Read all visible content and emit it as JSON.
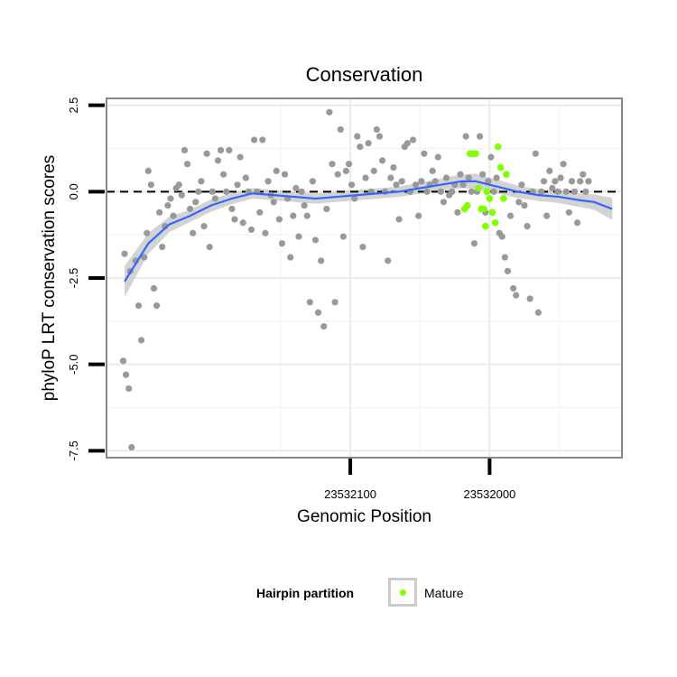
{
  "chart_data": {
    "type": "scatter",
    "title": "Conservation",
    "xlabel": "Genomic Position",
    "ylabel": "phyloP LRT conservation scores",
    "x_axis_reversed": true,
    "xlim": [
      23532275,
      23531905
    ],
    "ylim": [
      -7.7,
      2.7
    ],
    "x_ticks": [
      23532100,
      23532000
    ],
    "x_tick_labels": [
      "23532100",
      "23532000"
    ],
    "y_ticks": [
      -7.5,
      -5.0,
      -2.5,
      0.0,
      2.5
    ],
    "y_tick_labels": [
      "-7.5",
      "-5.0",
      "-2.5",
      "0.0",
      "2.5"
    ],
    "reference_line": {
      "y": 0,
      "style": "dashed"
    },
    "grid": true,
    "legend": {
      "title": "Hairpin partition",
      "position": "bottom",
      "entries": [
        "Mature"
      ]
    },
    "colors": {
      "background_points": "#999999",
      "mature_points": "#7fff00",
      "smooth_line": "#3366ff",
      "confidence_band": "#c8c8c8",
      "panel_border": "#888888"
    },
    "series": [
      {
        "role": "background",
        "points": [
          [
            23532263,
            -4.9
          ],
          [
            23532261,
            -5.3
          ],
          [
            23532259,
            -5.7
          ],
          [
            23532257,
            -7.4
          ],
          [
            23532262,
            -1.8
          ],
          [
            23532258,
            -2.3
          ],
          [
            23532254,
            -2.0
          ],
          [
            23532252,
            -3.3
          ],
          [
            23532250,
            -4.3
          ],
          [
            23532248,
            -1.9
          ],
          [
            23532246,
            -1.2
          ],
          [
            23532245,
            0.6
          ],
          [
            23532243,
            0.2
          ],
          [
            23532241,
            -2.8
          ],
          [
            23532239,
            -3.3
          ],
          [
            23532237,
            -0.6
          ],
          [
            23532235,
            -1.6
          ],
          [
            23532233,
            -1.0
          ],
          [
            23532231,
            -0.4
          ],
          [
            23532229,
            -0.2
          ],
          [
            23532227,
            -0.7
          ],
          [
            23532225,
            0.1
          ],
          [
            23532223,
            0.2
          ],
          [
            23532221,
            -0.1
          ],
          [
            23532219,
            1.2
          ],
          [
            23532217,
            0.8
          ],
          [
            23532215,
            -0.5
          ],
          [
            23532213,
            -1.2
          ],
          [
            23532211,
            -0.3
          ],
          [
            23532209,
            0.0
          ],
          [
            23532207,
            0.3
          ],
          [
            23532205,
            -1.0
          ],
          [
            23532203,
            1.1
          ],
          [
            23532201,
            -1.6
          ],
          [
            23532199,
            0.0
          ],
          [
            23532197,
            -0.2
          ],
          [
            23532195,
            0.9
          ],
          [
            23532193,
            1.2
          ],
          [
            23532191,
            0.5
          ],
          [
            23532189,
            0.0
          ],
          [
            23532187,
            1.2
          ],
          [
            23532185,
            -0.5
          ],
          [
            23532183,
            -0.8
          ],
          [
            23532181,
            0.2
          ],
          [
            23532179,
            1.0
          ],
          [
            23532177,
            -0.9
          ],
          [
            23532175,
            0.4
          ],
          [
            23532173,
            0.0
          ],
          [
            23532171,
            -1.1
          ],
          [
            23532169,
            1.5
          ],
          [
            23532167,
            0.0
          ],
          [
            23532165,
            -0.6
          ],
          [
            23532163,
            1.5
          ],
          [
            23532161,
            -1.2
          ],
          [
            23532159,
            0.3
          ],
          [
            23532157,
            -0.1
          ],
          [
            23532155,
            -0.3
          ],
          [
            23532153,
            0.6
          ],
          [
            23532151,
            -0.8
          ],
          [
            23532149,
            -1.5
          ],
          [
            23532147,
            0.5
          ],
          [
            23532145,
            -0.2
          ],
          [
            23532143,
            -1.9
          ],
          [
            23532141,
            -0.7
          ],
          [
            23532139,
            0.1
          ],
          [
            23532137,
            -1.3
          ],
          [
            23532135,
            0.0
          ],
          [
            23532133,
            -0.4
          ],
          [
            23532131,
            -0.7
          ],
          [
            23532129,
            -3.2
          ],
          [
            23532127,
            0.3
          ],
          [
            23532125,
            -1.4
          ],
          [
            23532123,
            -3.5
          ],
          [
            23532121,
            -2.0
          ],
          [
            23532119,
            -3.9
          ],
          [
            23532117,
            -0.5
          ],
          [
            23532115,
            2.3
          ],
          [
            23532113,
            0.8
          ],
          [
            23532111,
            -3.2
          ],
          [
            23532109,
            0.5
          ],
          [
            23532107,
            1.8
          ],
          [
            23532105,
            -1.3
          ],
          [
            23532103,
            0.6
          ],
          [
            23532101,
            0.8
          ],
          [
            23532099,
            0.2
          ],
          [
            23532097,
            -0.2
          ],
          [
            23532095,
            1.6
          ],
          [
            23532093,
            1.3
          ],
          [
            23532091,
            -1.6
          ],
          [
            23532089,
            0.4
          ],
          [
            23532087,
            1.4
          ],
          [
            23532085,
            0.0
          ],
          [
            23532083,
            0.6
          ],
          [
            23532081,
            1.8
          ],
          [
            23532079,
            1.6
          ],
          [
            23532077,
            0.9
          ],
          [
            23532075,
            0.0
          ],
          [
            23532073,
            -2.0
          ],
          [
            23532071,
            0.4
          ],
          [
            23532069,
            0.7
          ],
          [
            23532067,
            0.2
          ],
          [
            23532065,
            -0.8
          ],
          [
            23532063,
            0.3
          ],
          [
            23532061,
            1.3
          ],
          [
            23532059,
            1.4
          ],
          [
            23532057,
            0.0
          ],
          [
            23532055,
            1.5
          ],
          [
            23532053,
            0.2
          ],
          [
            23532051,
            -0.7
          ],
          [
            23532049,
            0.3
          ],
          [
            23532047,
            1.1
          ],
          [
            23532045,
            0.0
          ],
          [
            23532043,
            0.2
          ],
          [
            23532041,
            0.6
          ],
          [
            23532039,
            0.3
          ],
          [
            23532037,
            1.0
          ],
          [
            23532035,
            0.0
          ],
          [
            23532033,
            -0.3
          ],
          [
            23532031,
            0.4
          ],
          [
            23532029,
            -0.1
          ],
          [
            23532027,
            0.0
          ],
          [
            23532025,
            0.2
          ],
          [
            23532023,
            -0.6
          ],
          [
            23532021,
            0.5
          ],
          [
            23532019,
            0.2
          ],
          [
            23532017,
            1.6
          ],
          [
            23532015,
            0.4
          ],
          [
            23532013,
            0.0
          ],
          [
            23532011,
            -1.5
          ],
          [
            23532009,
            0.0
          ],
          [
            23532007,
            1.6
          ],
          [
            23532005,
            0.5
          ],
          [
            23532003,
            -0.6
          ],
          [
            23532001,
            0.3
          ],
          [
            23531999,
            1.0
          ],
          [
            23531997,
            0.0
          ],
          [
            23531995,
            0.4
          ],
          [
            23531993,
            -1.2
          ],
          [
            23531991,
            -1.3
          ],
          [
            23531989,
            -1.9
          ],
          [
            23531987,
            -2.3
          ],
          [
            23531985,
            -0.7
          ],
          [
            23531983,
            -2.8
          ],
          [
            23531981,
            -3.0
          ],
          [
            23531979,
            -0.3
          ],
          [
            23531977,
            0.2
          ],
          [
            23531975,
            -0.4
          ],
          [
            23531973,
            -1.0
          ],
          [
            23531971,
            -3.1
          ],
          [
            23531969,
            0.0
          ],
          [
            23531967,
            1.1
          ],
          [
            23531965,
            -3.5
          ],
          [
            23531963,
            0.0
          ],
          [
            23531961,
            0.3
          ],
          [
            23531959,
            -0.7
          ],
          [
            23531957,
            0.6
          ],
          [
            23531955,
            0.1
          ],
          [
            23531953,
            0.3
          ],
          [
            23531951,
            0.0
          ],
          [
            23531949,
            0.4
          ],
          [
            23531947,
            0.8
          ],
          [
            23531945,
            0.0
          ],
          [
            23531943,
            -0.6
          ],
          [
            23531941,
            0.3
          ],
          [
            23531939,
            0.0
          ],
          [
            23531937,
            -0.9
          ],
          [
            23531935,
            0.3
          ],
          [
            23531933,
            0.5
          ],
          [
            23531931,
            0.0
          ],
          [
            23531929,
            0.3
          ]
        ]
      },
      {
        "role": "highlight",
        "name": "Mature",
        "points": [
          [
            23532014,
            1.1
          ],
          [
            23532012,
            1.1
          ],
          [
            23532010,
            1.1
          ],
          [
            23532008,
            0.1
          ],
          [
            23532006,
            -0.5
          ],
          [
            23532004,
            -0.5
          ],
          [
            23532002,
            0.0
          ],
          [
            23532000,
            -0.2
          ],
          [
            23531998,
            -0.6
          ],
          [
            23531996,
            -0.9
          ],
          [
            23531994,
            1.3
          ],
          [
            23531992,
            0.7
          ],
          [
            23531990,
            -0.2
          ],
          [
            23531988,
            0.5
          ],
          [
            23532003,
            -1.0
          ],
          [
            23532016,
            -0.4
          ],
          [
            23532018,
            -0.5
          ]
        ]
      }
    ],
    "smooth_fit": {
      "method": "loess",
      "points": [
        [
          23532262,
          -2.6
        ],
        [
          23532245,
          -1.5
        ],
        [
          23532230,
          -0.95
        ],
        [
          23532215,
          -0.7
        ],
        [
          23532200,
          -0.4
        ],
        [
          23532185,
          -0.2
        ],
        [
          23532170,
          -0.05
        ],
        [
          23532155,
          -0.1
        ],
        [
          23532140,
          -0.15
        ],
        [
          23532125,
          -0.2
        ],
        [
          23532110,
          -0.15
        ],
        [
          23532095,
          -0.1
        ],
        [
          23532080,
          -0.05
        ],
        [
          23532065,
          0.0
        ],
        [
          23532050,
          0.1
        ],
        [
          23532035,
          0.2
        ],
        [
          23532020,
          0.3
        ],
        [
          23532010,
          0.3
        ],
        [
          23531995,
          0.15
        ],
        [
          23531980,
          0.0
        ],
        [
          23531965,
          -0.1
        ],
        [
          23531950,
          -0.15
        ],
        [
          23531935,
          -0.25
        ],
        [
          23531925,
          -0.3
        ],
        [
          23531912,
          -0.5
        ]
      ],
      "band_halfwidth": [
        0.45,
        0.3,
        0.22,
        0.18,
        0.18,
        0.16,
        0.15,
        0.15,
        0.15,
        0.15,
        0.15,
        0.15,
        0.15,
        0.15,
        0.16,
        0.18,
        0.2,
        0.22,
        0.2,
        0.18,
        0.17,
        0.18,
        0.2,
        0.22,
        0.32
      ]
    }
  }
}
